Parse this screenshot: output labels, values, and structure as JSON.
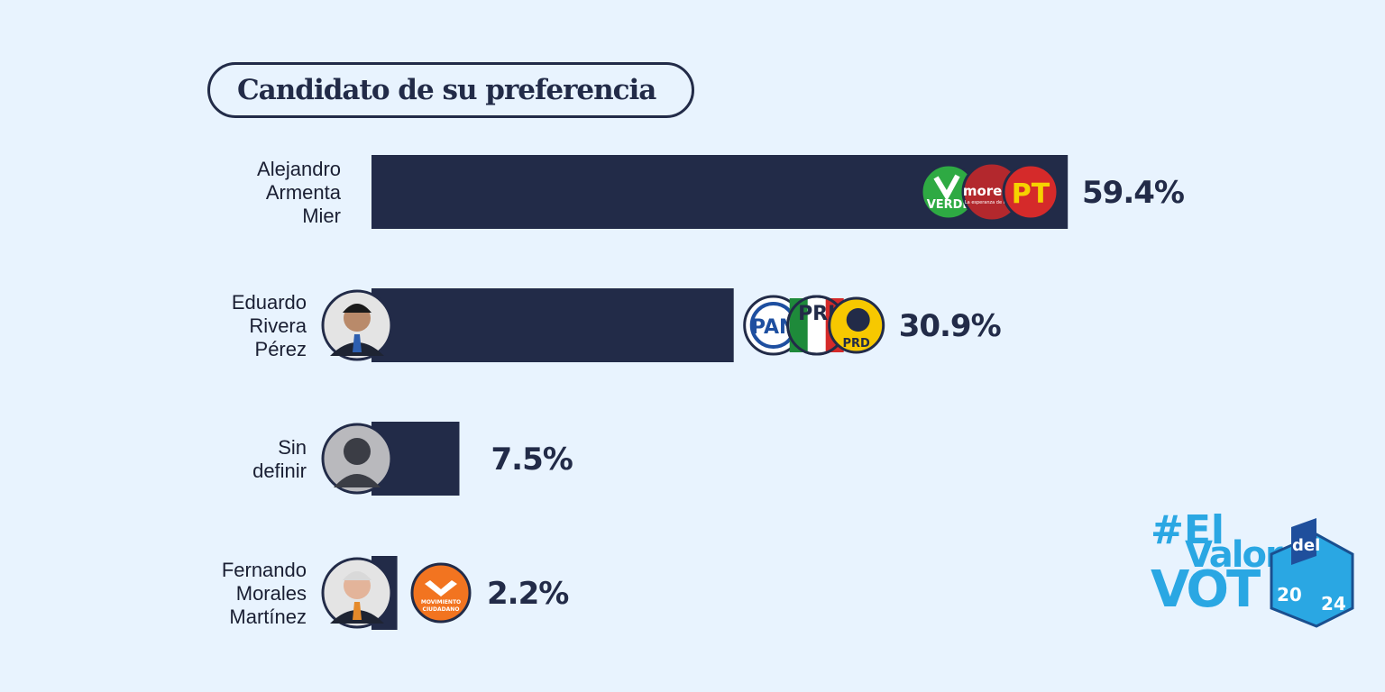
{
  "chart_data": {
    "type": "bar",
    "orientation": "horizontal",
    "title": "Candidato de su preferencia",
    "xlim": [
      0,
      100
    ],
    "grid": false,
    "categories": [
      [
        "Alejandro",
        "Armenta",
        "Mier"
      ],
      [
        "Eduardo",
        "Rivera",
        "Pérez"
      ],
      [
        "Sin",
        "definir"
      ],
      [
        "Fernando",
        "Morales",
        "Martínez"
      ]
    ],
    "values": [
      59.4,
      30.9,
      7.5,
      2.2
    ],
    "value_labels": [
      "59.4%",
      "30.9%",
      "7.5%",
      "2.2%"
    ],
    "bar_color": "#222b48",
    "party_logos": [
      [
        "VERDE",
        "morena",
        "PT"
      ],
      [
        "PAN",
        "PRI",
        "PRD"
      ],
      [],
      [
        "MOVIMIENTO CIUDADANO"
      ]
    ],
    "photos": [
      "",
      "candidate-photo",
      "silhouette",
      "candidate-photo"
    ]
  },
  "logos": {
    "verde_text": "VERDE",
    "morena_text": "morena",
    "morena_sub": "La esperanza de México",
    "pt_text": "PT",
    "pan_text": "PAN",
    "pri_text": "PRI",
    "prd_text": "PRD",
    "mc_text1": "MOVIMIENTO",
    "mc_text2": "CIUDADANO"
  },
  "brand": {
    "hash_line": "#El",
    "valor": "Valor",
    "del": "del",
    "vot": "VOT",
    "year_a": "20",
    "year_b": "24",
    "color": "#2aa7e3"
  }
}
